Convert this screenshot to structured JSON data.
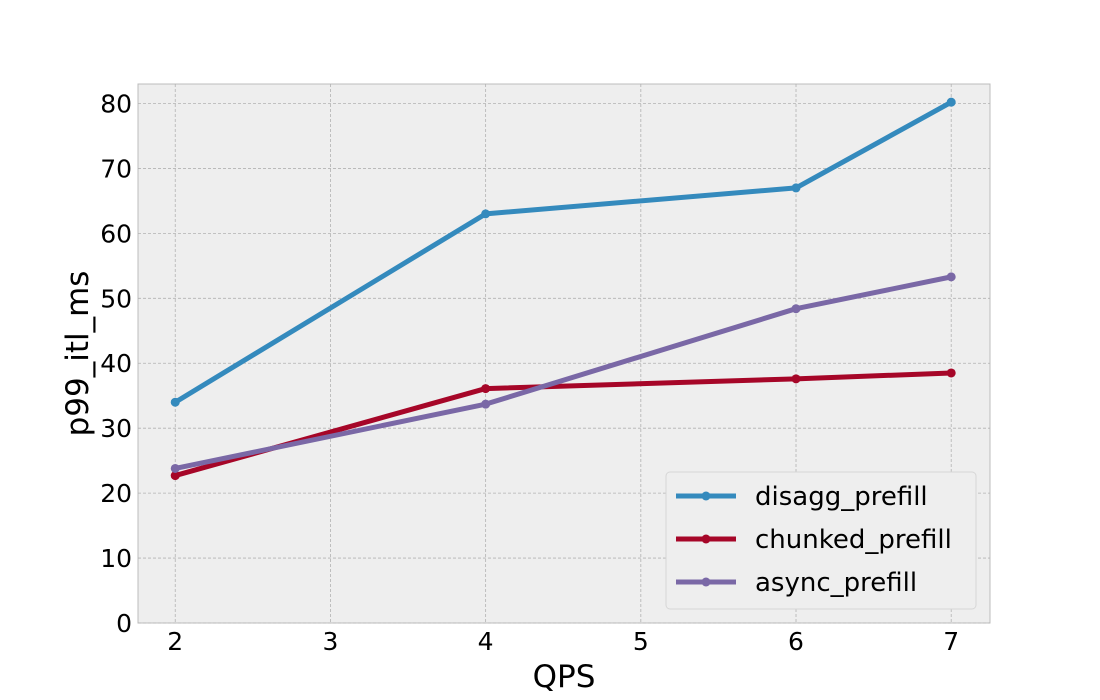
{
  "chart_data": {
    "type": "line",
    "title": "",
    "xlabel": "QPS",
    "ylabel": "p99_itl_ms",
    "x": [
      2,
      4,
      6,
      7
    ],
    "xlim": [
      1.76,
      7.25
    ],
    "ylim": [
      0,
      83
    ],
    "xticks": [
      2,
      3,
      4,
      5,
      6,
      7
    ],
    "yticks": [
      0,
      10,
      20,
      30,
      40,
      50,
      60,
      70,
      80
    ],
    "grid": true,
    "legend_position": "lower-right",
    "series": [
      {
        "name": "disagg_prefill",
        "color": "#348abd",
        "values": [
          34.0,
          63.0,
          67.0,
          80.2
        ]
      },
      {
        "name": "chunked_prefill",
        "color": "#a60628",
        "values": [
          22.7,
          36.1,
          37.6,
          38.5
        ]
      },
      {
        "name": "async_prefill",
        "color": "#7a68a6",
        "values": [
          23.8,
          33.7,
          48.4,
          53.3
        ]
      }
    ]
  }
}
